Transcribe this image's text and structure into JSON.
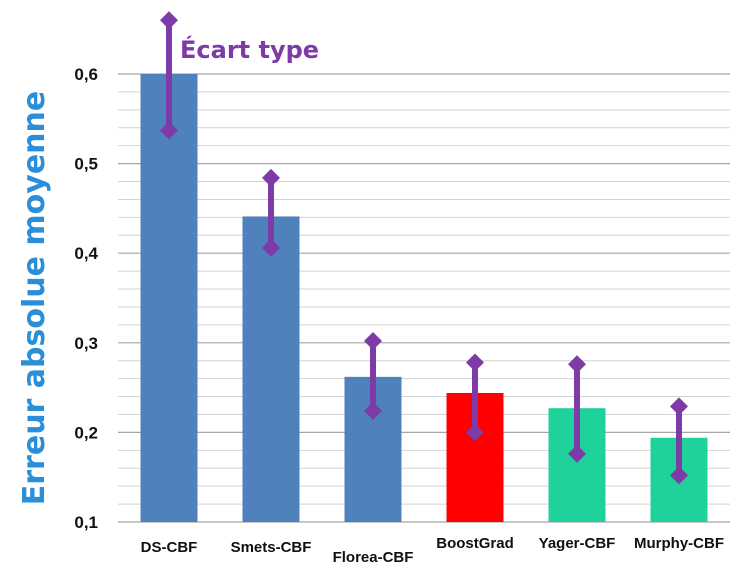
{
  "chart_data": {
    "type": "bar",
    "ylabel": "Erreur absolue moyenne",
    "annotation": "Écart type",
    "categories": [
      "DS-CBF",
      "Smets-CBF",
      "Florea-CBF",
      "BoostGrad",
      "Yager-CBF",
      "Murphy-CBF"
    ],
    "values": [
      0.6,
      0.441,
      0.262,
      0.244,
      0.227,
      0.194
    ],
    "error_low": [
      0.537,
      0.406,
      0.224,
      0.2,
      0.176,
      0.152
    ],
    "error_high": [
      0.66,
      0.484,
      0.302,
      0.278,
      0.276,
      0.229
    ],
    "bar_colors": [
      "#4f81bd",
      "#4f81bd",
      "#4f81bd",
      "#ff0000",
      "#1fd19b",
      "#1fd19b"
    ],
    "error_color": "#7e3aa6",
    "ylim": [
      0.1,
      0.6
    ],
    "yticks": [
      0.1,
      0.2,
      0.3,
      0.4,
      0.5,
      0.6
    ],
    "ytick_labels": [
      "0,1",
      "0,2",
      "0,3",
      "0,4",
      "0,5",
      "0,6"
    ],
    "grid": true
  }
}
